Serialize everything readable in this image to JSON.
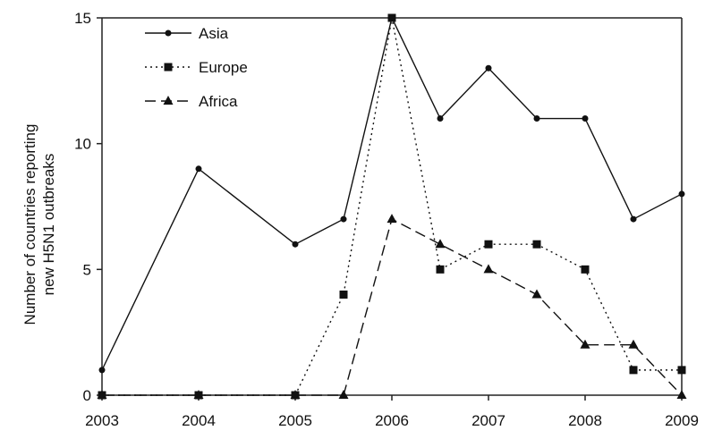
{
  "chart_data": {
    "type": "line",
    "title": "",
    "xlabel": "",
    "ylabel": [
      "Number of countries reporting",
      "new H5N1 outbreaks"
    ],
    "xlim": [
      2003,
      2009
    ],
    "ylim": [
      0,
      15
    ],
    "x_ticks": [
      "2003",
      "2004",
      "2005",
      "2006",
      "2007",
      "2008",
      "2009"
    ],
    "y_ticks": [
      "0",
      "5",
      "10",
      "15"
    ],
    "grid": false,
    "legend_position": "top-left",
    "series": [
      {
        "name": "Asia",
        "style": "solid",
        "marker": "circle",
        "x": [
          2003,
          2004,
          2005,
          2005.5,
          2006,
          2006.5,
          2007,
          2007.5,
          2008,
          2008.5,
          2009
        ],
        "y": [
          1,
          9,
          6,
          7,
          15,
          11,
          13,
          11,
          11,
          7,
          8
        ]
      },
      {
        "name": "Europe",
        "style": "dotted",
        "marker": "square",
        "x": [
          2003,
          2004,
          2005,
          2005.5,
          2006,
          2006.5,
          2007,
          2007.5,
          2008,
          2008.5,
          2009
        ],
        "y": [
          0,
          0,
          0,
          4,
          15,
          5,
          6,
          6,
          5,
          1,
          1
        ]
      },
      {
        "name": "Africa",
        "style": "dashed",
        "marker": "triangle",
        "x": [
          2003,
          2004,
          2005,
          2005.5,
          2006,
          2006.5,
          2007,
          2007.5,
          2008,
          2008.5,
          2009
        ],
        "y": [
          0,
          0,
          0,
          0,
          7,
          6,
          5,
          4,
          2,
          2,
          0
        ]
      }
    ]
  }
}
